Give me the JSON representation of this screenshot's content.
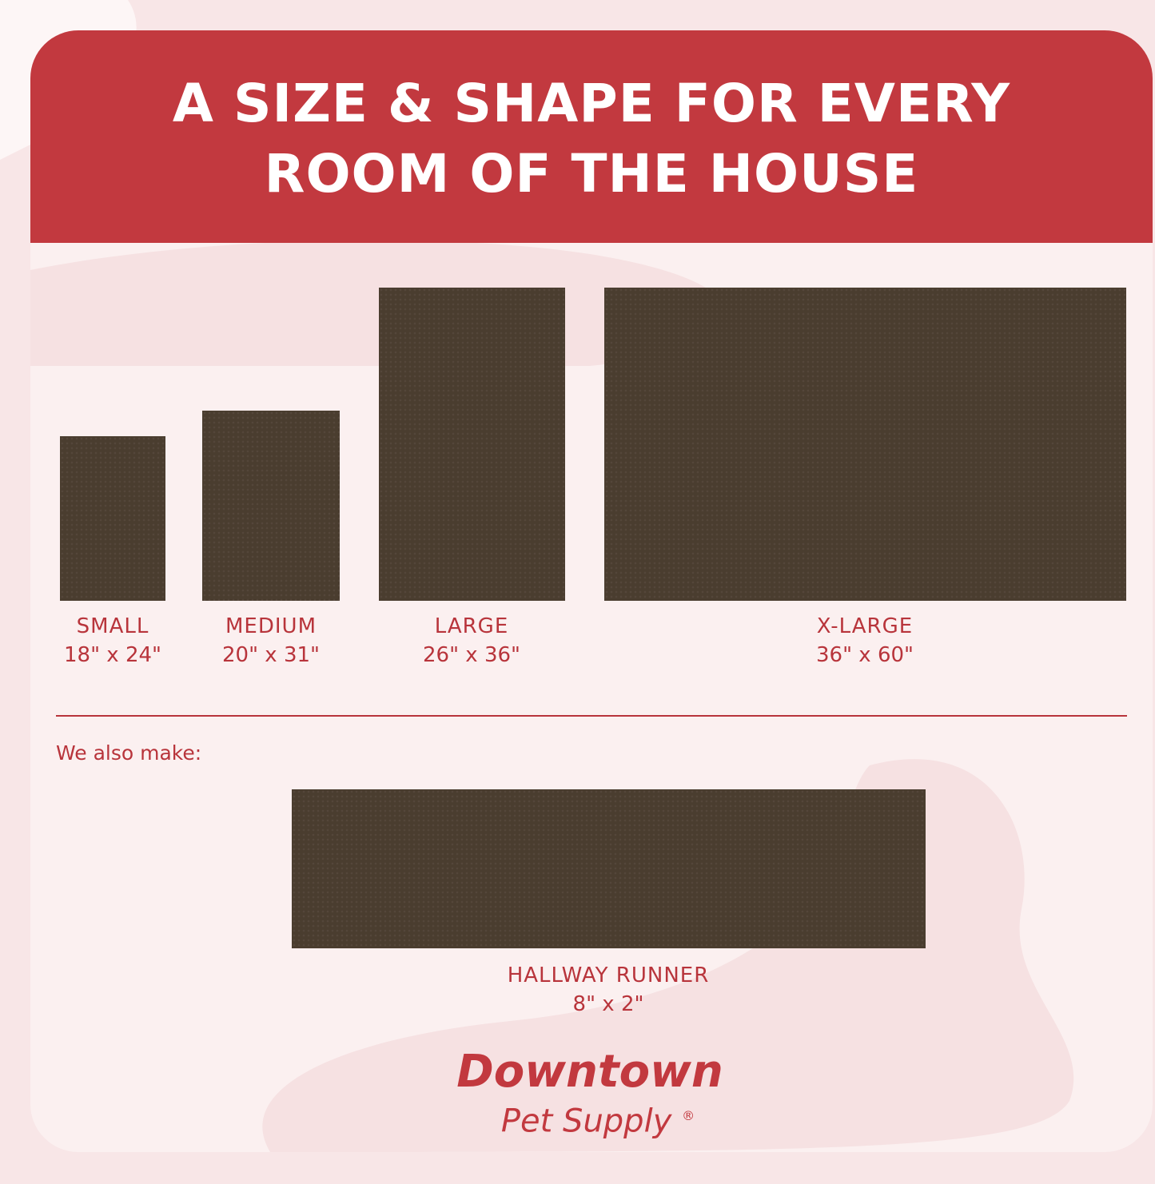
{
  "header": {
    "title_line1": "A SIZE & SHAPE FOR EVERY",
    "title_line2": "ROOM OF THE HOUSE"
  },
  "sizes": [
    {
      "name": "SMALL",
      "dims": "18\" x 24\""
    },
    {
      "name": "MEDIUM",
      "dims": "20\" x 31\""
    },
    {
      "name": "LARGE",
      "dims": "26\" x 36\""
    },
    {
      "name": "X-LARGE",
      "dims": "36\" x 60\""
    }
  ],
  "also": {
    "label": "We also make:",
    "name": "HALLWAY RUNNER",
    "dims": "8\" x 2\""
  },
  "logo": {
    "line1": "Downtown",
    "line2": "Pet Supply",
    "mark": "®"
  },
  "colors": {
    "brand_red": "#c2393f",
    "mat": "#4a3d2f",
    "background": "#fbf0f0"
  }
}
